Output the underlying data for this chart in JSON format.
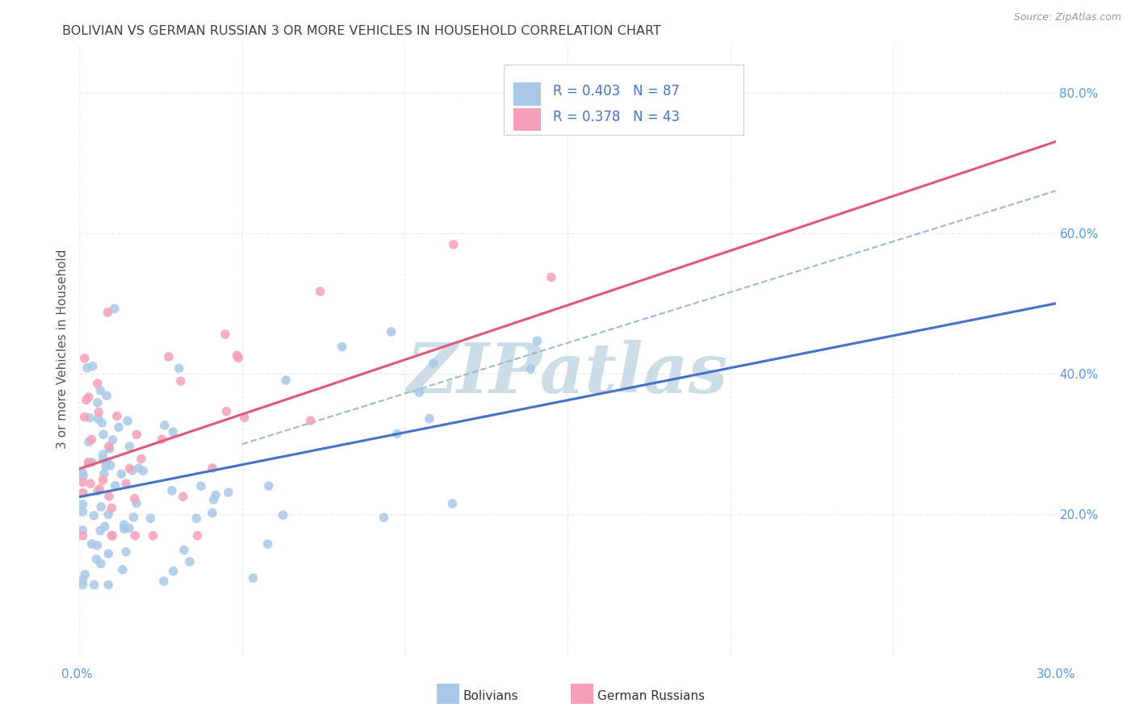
{
  "title": "BOLIVIAN VS GERMAN RUSSIAN 3 OR MORE VEHICLES IN HOUSEHOLD CORRELATION CHART",
  "source": "Source: ZipAtlas.com",
  "xlabel_bottom_left": "0.0%",
  "xlabel_bottom_right": "30.0%",
  "ylabel": "3 or more Vehicles in Household",
  "right_yticks": [
    "20.0%",
    "40.0%",
    "60.0%",
    "80.0%"
  ],
  "right_ytick_vals": [
    0.2,
    0.4,
    0.6,
    0.8
  ],
  "xlim": [
    0.0,
    0.3
  ],
  "ylim": [
    0.0,
    0.87
  ],
  "legend_blue_R": "R = 0.403",
  "legend_blue_N": "N = 87",
  "legend_pink_R": "R = 0.378",
  "legend_pink_N": "N = 43",
  "blue_color": "#a8c8e8",
  "pink_color": "#f5a0b8",
  "blue_line_color": "#4472c4",
  "pink_line_color": "#e05878",
  "dashed_line_color": "#a0b8cc",
  "legend_text_color": "#4472c4",
  "title_color": "#404040",
  "source_color": "#999999",
  "watermark_color": "#ccdde8",
  "grid_color": "#e8e8e8",
  "background_color": "#ffffff",
  "blue_line_x0": 0.0,
  "blue_line_y0": 0.225,
  "blue_line_x1": 0.3,
  "blue_line_y1": 0.5,
  "pink_line_x0": 0.0,
  "pink_line_y0": 0.265,
  "pink_line_x1": 0.3,
  "pink_line_y1": 0.73,
  "dash_line_x0": 0.05,
  "dash_line_y0": 0.3,
  "dash_line_x1": 0.3,
  "dash_line_y1": 0.66
}
